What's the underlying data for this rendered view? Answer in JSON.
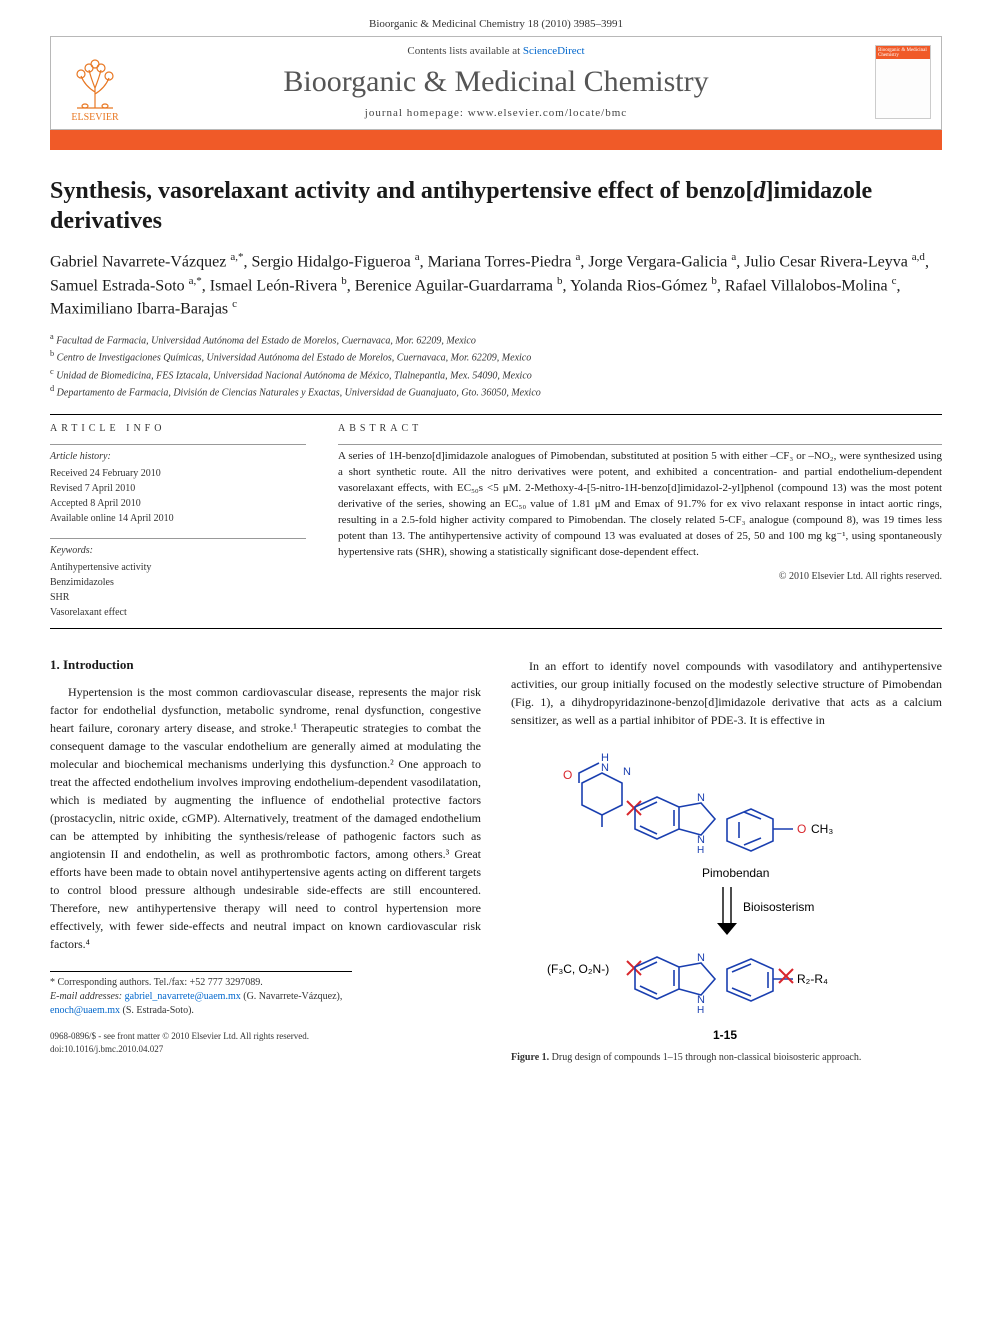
{
  "header": {
    "running_head": "Bioorganic & Medicinal Chemistry 18 (2010) 3985–3991"
  },
  "masthead": {
    "contents_line_prefix": "Contents lists available at ",
    "contents_link": "ScienceDirect",
    "journal_title": "Bioorganic & Medicinal Chemistry",
    "homepage_line": "journal homepage: www.elsevier.com/locate/bmc",
    "publisher_name": "ELSEVIER",
    "orange_bar_color": "#f05a28"
  },
  "article": {
    "title": "Synthesis, vasorelaxant activity and antihypertensive effect of benzo[d]imidazole derivatives",
    "title_italic_segment": "d",
    "authors_html": "Gabriel Navarrete-Vázquez <sup>a,*</sup>, Sergio Hidalgo-Figueroa <sup>a</sup>, Mariana Torres-Piedra <sup>a</sup>, Jorge Vergara-Galicia <sup>a</sup>, Julio Cesar Rivera-Leyva <sup>a,d</sup>, Samuel Estrada-Soto <sup>a,*</sup>, Ismael León-Rivera <sup>b</sup>, Berenice Aguilar-Guardarrama <sup>b</sup>, Yolanda Rios-Gómez <sup>b</sup>, Rafael Villalobos-Molina <sup>c</sup>, Maximiliano Ibarra-Barajas <sup>c</sup>",
    "affiliations": [
      "<sup>a</sup> Facultad de Farmacia, Universidad Autónoma del Estado de Morelos, Cuernavaca, Mor. 62209, Mexico",
      "<sup>b</sup> Centro de Investigaciones Químicas, Universidad Autónoma del Estado de Morelos, Cuernavaca, Mor. 62209, Mexico",
      "<sup>c</sup> Unidad de Biomedicina, FES Iztacala, Universidad Nacional Autónoma de México, Tlalnepantla, Mex. 54090, Mexico",
      "<sup>d</sup> Departamento de Farmacia, División de Ciencias Naturales y Exactas, Universidad de Guanajuato, Gto. 36050, Mexico"
    ]
  },
  "article_info": {
    "label": "ARTICLE INFO",
    "history_heading": "Article history:",
    "history": [
      "Received 24 February 2010",
      "Revised 7 April 2010",
      "Accepted 8 April 2010",
      "Available online 14 April 2010"
    ],
    "keywords_heading": "Keywords:",
    "keywords": [
      "Antihypertensive activity",
      "Benzimidazoles",
      "SHR",
      "Vasorelaxant effect"
    ]
  },
  "abstract": {
    "label": "ABSTRACT",
    "text": "A series of 1H-benzo[d]imidazole analogues of Pimobendan, substituted at position 5 with either –CF₃ or –NO₂, were synthesized using a short synthetic route. All the nitro derivatives were potent, and exhibited a concentration- and partial endothelium-dependent vasorelaxant effects, with EC₅₀s <5 μM. 2-Methoxy-4-[5-nitro-1H-benzo[d]imidazol-2-yl]phenol (compound 13) was the most potent derivative of the series, showing an EC₅₀ value of 1.81 μM and Emax of 91.7% for ex vivo relaxant response in intact aortic rings, resulting in a 2.5-fold higher activity compared to Pimobendan. The closely related 5-CF₃ analogue (compound 8), was 19 times less potent than 13. The antihypertensive activity of compound 13 was evaluated at doses of 25, 50 and 100 mg kg⁻¹, using spontaneously hypertensive rats (SHR), showing a statistically significant dose-dependent effect.",
    "copyright": "© 2010 Elsevier Ltd. All rights reserved."
  },
  "introduction": {
    "heading": "1. Introduction",
    "para1": "Hypertension is the most common cardiovascular disease, represents the major risk factor for endothelial dysfunction, metabolic syndrome, renal dysfunction, congestive heart failure, coronary artery disease, and stroke.¹ Therapeutic strategies to combat the consequent damage to the vascular endothelium are generally aimed at modulating the molecular and biochemical mechanisms underlying this dysfunction.² One approach to treat the affected endothelium involves improving endothelium-dependent vasodilatation, which is mediated by augmenting the influence of endothelial protective factors (prostacyclin, nitric oxide, cGMP). Alternatively, treatment of the damaged endothelium can be attempted by inhibiting the synthesis/release of pathogenic factors such as angiotensin II and endothelin, as well as prothrombotic factors, among others.³ Great efforts have been made to obtain novel antihypertensive agents acting on different targets to control blood pressure although undesirable side-effects are still encountered. Therefore, new antihypertensive therapy will need to control hypertension more effectively, with fewer side-effects and neutral impact on known cardiovascular risk factors.⁴",
    "para2_right": "In an effort to identify novel compounds with vasodilatory and antihypertensive activities, our group initially focused on the modestly selective structure of Pimobendan (Fig. 1), a dihydropyridazinone-benzo[d]imidazole derivative that acts as a calcium sensitizer, as well as a partial inhibitor of PDE-3. It is effective in"
  },
  "figure1": {
    "caption_label": "Figure 1.",
    "caption_text": " Drug design of compounds 1–15 through non-classical bioisosteric approach.",
    "label_top": "Pimobendan",
    "label_arrow": "Bioisosterism",
    "left_group": "(F₃C, O₂N-)",
    "right_group": "R₂-R₄",
    "methoxy": "O CH₃",
    "range_label": "1-15",
    "colors": {
      "bond_blue": "#1a3fb0",
      "atom_red": "#d8262c",
      "cross_red": "#d8262c",
      "text_black": "#000000"
    }
  },
  "footnotes": {
    "corresponding": "* Corresponding authors. Tel./fax: +52 777 3297089.",
    "email_label": "E-mail addresses:",
    "email1": "gabriel_navarrete@uaem.mx",
    "email1_who": " (G. Navarrete-Vázquez), ",
    "email2": "enoch@uaem.mx",
    "email2_who": " (S. Estrada-Soto)."
  },
  "doi": {
    "line1": "0968-0896/$ - see front matter © 2010 Elsevier Ltd. All rights reserved.",
    "line2": "doi:10.1016/j.bmc.2010.04.027"
  }
}
